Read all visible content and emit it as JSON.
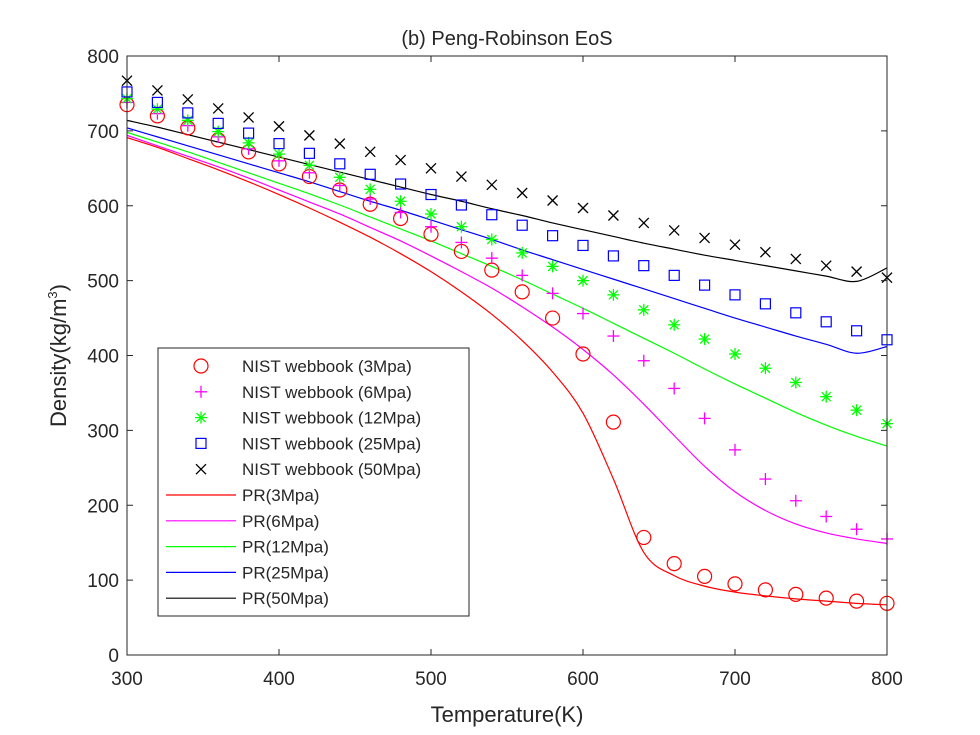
{
  "chart_data": {
    "type": "scatter",
    "title": "(b) Peng-Robinson EoS",
    "xlabel": "Temperature(K)",
    "ylabel": "Density(kg/m",
    "ylabel_sup": "3",
    "ylabel_suffix": ")",
    "xlim": [
      300,
      800
    ],
    "ylim": [
      0,
      800
    ],
    "xticks": [
      300,
      400,
      500,
      600,
      700,
      800
    ],
    "yticks": [
      0,
      100,
      200,
      300,
      400,
      500,
      600,
      700,
      800
    ],
    "x": [
      300,
      320,
      340,
      360,
      380,
      400,
      420,
      440,
      460,
      480,
      500,
      520,
      540,
      560,
      580,
      600,
      620,
      640,
      660,
      680,
      700,
      720,
      740,
      760,
      780,
      800
    ],
    "legend_position": "lower-left",
    "series": [
      {
        "name": "NIST webbook (3Mpa)",
        "kind": "marker",
        "marker": "circle",
        "color": "#ff0000",
        "values": [
          735,
          720,
          704,
          688,
          672,
          656,
          639,
          621,
          602,
          583,
          562,
          539,
          514,
          485,
          450,
          402,
          311,
          157,
          122,
          105,
          95,
          87,
          81,
          76,
          72,
          69
        ]
      },
      {
        "name": "NIST webbook (6Mpa)",
        "kind": "marker",
        "marker": "plus",
        "color": "#ff00ff",
        "values": [
          738,
          723,
          707,
          692,
          676,
          660,
          644,
          627,
          609,
          591,
          572,
          551,
          530,
          507,
          483,
          456,
          426,
          393,
          356,
          316,
          274,
          235,
          206,
          185,
          168,
          155
        ]
      },
      {
        "name": "NIST webbook (12Mpa)",
        "kind": "marker",
        "marker": "asterisk",
        "color": "#00ff00",
        "values": [
          743,
          729,
          714,
          699,
          684,
          669,
          654,
          638,
          622,
          606,
          589,
          572,
          555,
          537,
          519,
          500,
          481,
          461,
          441,
          422,
          402,
          383,
          364,
          345,
          327,
          309
        ]
      },
      {
        "name": "NIST webbook (25Mpa)",
        "kind": "marker",
        "marker": "square",
        "color": "#0000ff",
        "values": [
          752,
          738,
          724,
          710,
          697,
          683,
          670,
          656,
          642,
          629,
          615,
          601,
          588,
          574,
          560,
          547,
          533,
          520,
          507,
          494,
          481,
          469,
          457,
          445,
          433,
          421
        ]
      },
      {
        "name": "NIST webbook (50Mpa)",
        "kind": "marker",
        "marker": "cross",
        "color": "#000000",
        "values": [
          767,
          754,
          742,
          730,
          718,
          706,
          694,
          683,
          672,
          661,
          650,
          639,
          628,
          617,
          607,
          597,
          587,
          577,
          567,
          557,
          548,
          538,
          529,
          520,
          512,
          504
        ]
      },
      {
        "name": "PR(3Mpa)",
        "kind": "line",
        "color": "#ff0000",
        "values": [
          691,
          678,
          663,
          648,
          632,
          615,
          597,
          578,
          558,
          536,
          512,
          485,
          455,
          420,
          378,
          323,
          235,
          137,
          106,
          92,
          84,
          79,
          75,
          72,
          69,
          67
        ]
      },
      {
        "name": "PR(6Mpa)",
        "kind": "line",
        "color": "#ff00ff",
        "values": [
          694,
          680,
          666,
          652,
          637,
          621,
          605,
          589,
          571,
          553,
          533,
          512,
          490,
          465,
          438,
          408,
          374,
          335,
          293,
          252,
          218,
          193,
          175,
          163,
          155,
          149
        ]
      },
      {
        "name": "PR(12Mpa)",
        "kind": "line",
        "color": "#00ff00",
        "values": [
          698,
          685,
          672,
          658,
          644,
          630,
          616,
          601,
          585,
          569,
          553,
          536,
          519,
          501,
          482,
          463,
          443,
          423,
          403,
          382,
          362,
          343,
          324,
          307,
          292,
          279
        ]
      },
      {
        "name": "PR(25Mpa)",
        "kind": "line",
        "color": "#0000ff",
        "values": [
          704,
          692,
          680,
          668,
          656,
          644,
          632,
          619,
          606,
          594,
          581,
          568,
          555,
          541,
          528,
          515,
          502,
          489,
          476,
          463,
          450,
          438,
          426,
          415,
          403,
          412
        ]
      },
      {
        "name": "PR(50Mpa)",
        "kind": "line",
        "color": "#000000",
        "values": [
          714,
          705,
          695,
          685,
          675,
          665,
          655,
          645,
          635,
          625,
          615,
          606,
          596,
          587,
          577,
          568,
          559,
          550,
          542,
          534,
          527,
          520,
          513,
          506,
          499,
          517
        ]
      }
    ]
  }
}
